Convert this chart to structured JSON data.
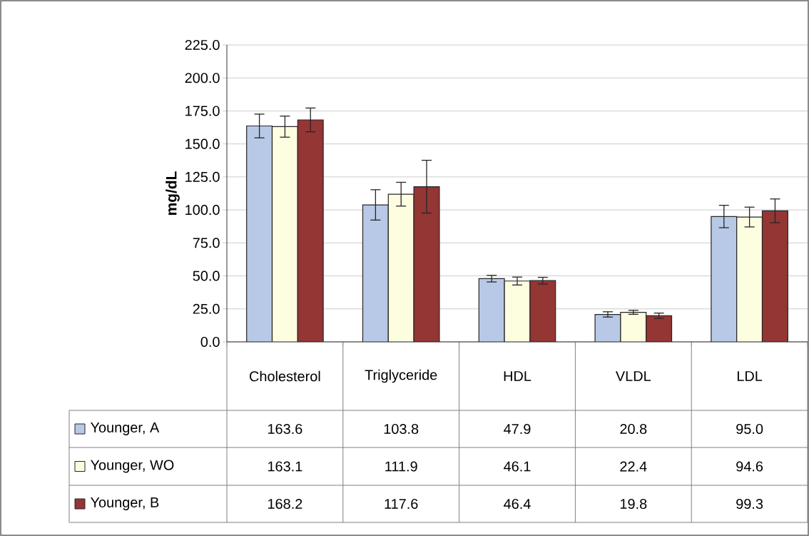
{
  "chart_data": {
    "type": "bar",
    "ylabel": "mg/dL",
    "categories": [
      "Cholesterol",
      "Triglyceride",
      "HDL",
      "VLDL",
      "LDL"
    ],
    "series": [
      {
        "name": "Younger, A",
        "color": "#b7c9e6",
        "values": [
          163.6,
          103.8,
          47.9,
          20.8,
          95.0
        ],
        "value_labels": [
          "163.6",
          "103.8",
          "47.9",
          "20.8",
          "95.0"
        ],
        "errors": [
          9,
          11.5,
          2.5,
          2,
          8.5
        ]
      },
      {
        "name": "Younger, WO",
        "color": "#fdfde0",
        "values": [
          163.1,
          111.9,
          46.1,
          22.4,
          94.6
        ],
        "value_labels": [
          "163.1",
          "111.9",
          "46.1",
          "22.4",
          "94.6"
        ],
        "errors": [
          8,
          9,
          3,
          1.5,
          7.5
        ]
      },
      {
        "name": "Younger, B",
        "color": "#943634",
        "values": [
          168.2,
          117.6,
          46.4,
          19.8,
          99.3
        ],
        "value_labels": [
          "168.2",
          "117.6",
          "46.4",
          "19.8",
          "99.3"
        ],
        "errors": [
          9,
          20,
          2.5,
          2,
          9
        ]
      }
    ],
    "ylim": [
      0,
      225
    ],
    "yticks": [
      {
        "value": 0,
        "label": "0.0"
      },
      {
        "value": 25,
        "label": "25.0"
      },
      {
        "value": 50,
        "label": "50.0"
      },
      {
        "value": 75,
        "label": "75.0"
      },
      {
        "value": 100,
        "label": "100.0"
      },
      {
        "value": 125,
        "label": "125.0"
      },
      {
        "value": 150,
        "label": "150.0"
      },
      {
        "value": 175,
        "label": "175.0"
      },
      {
        "value": 200,
        "label": "200.0"
      },
      {
        "value": 225,
        "label": "225.0"
      }
    ],
    "grid": "y",
    "legend": "bottom"
  }
}
